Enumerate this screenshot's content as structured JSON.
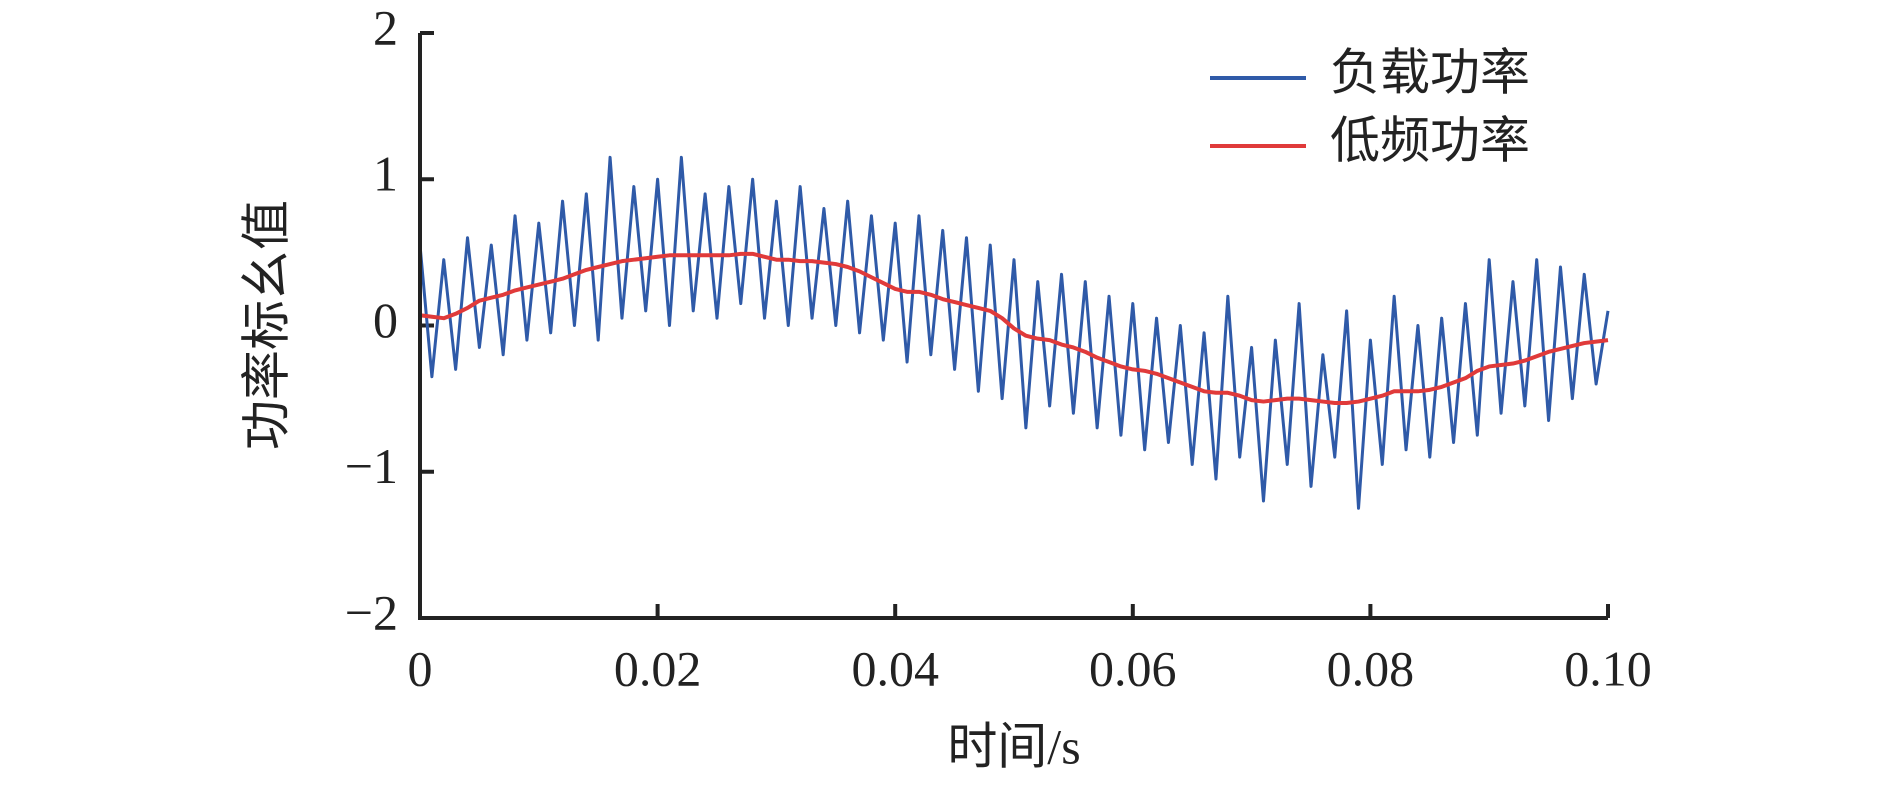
{
  "chart_data": {
    "type": "line",
    "xlabel": "时间/s",
    "ylabel": "功率标幺值",
    "x": [
      0,
      0.001,
      0.002,
      0.003,
      0.004,
      0.005,
      0.006,
      0.007,
      0.008,
      0.009,
      0.01,
      0.011,
      0.012,
      0.013,
      0.014,
      0.015,
      0.016,
      0.017,
      0.018,
      0.019,
      0.02,
      0.021,
      0.022,
      0.023,
      0.024,
      0.025,
      0.026,
      0.027,
      0.028,
      0.029,
      0.03,
      0.031,
      0.032,
      0.033,
      0.034,
      0.035,
      0.036,
      0.037,
      0.038,
      0.039,
      0.04,
      0.041,
      0.042,
      0.043,
      0.044,
      0.045,
      0.046,
      0.047,
      0.048,
      0.049,
      0.05,
      0.051,
      0.052,
      0.053,
      0.054,
      0.055,
      0.056,
      0.057,
      0.058,
      0.059,
      0.06,
      0.061,
      0.062,
      0.063,
      0.064,
      0.065,
      0.066,
      0.067,
      0.068,
      0.069,
      0.07,
      0.071,
      0.072,
      0.073,
      0.074,
      0.075,
      0.076,
      0.077,
      0.078,
      0.079,
      0.08,
      0.081,
      0.082,
      0.083,
      0.084,
      0.085,
      0.086,
      0.087,
      0.088,
      0.089,
      0.09,
      0.091,
      0.092,
      0.093,
      0.094,
      0.095,
      0.096,
      0.097,
      0.098,
      0.099,
      0.1
    ],
    "series": [
      {
        "name": "负载功率",
        "color": "#2f5aa8",
        "values": [
          0.55,
          -0.35,
          0.45,
          -0.3,
          0.6,
          -0.15,
          0.55,
          -0.2,
          0.75,
          -0.1,
          0.7,
          -0.05,
          0.85,
          0.0,
          0.9,
          -0.1,
          1.15,
          0.05,
          0.95,
          0.1,
          1.0,
          0.0,
          1.15,
          0.1,
          0.9,
          0.05,
          0.95,
          0.15,
          1.0,
          0.05,
          0.85,
          0.0,
          0.95,
          0.05,
          0.8,
          0.0,
          0.85,
          -0.05,
          0.75,
          -0.1,
          0.7,
          -0.25,
          0.75,
          -0.2,
          0.65,
          -0.3,
          0.6,
          -0.45,
          0.55,
          -0.5,
          0.45,
          -0.7,
          0.3,
          -0.55,
          0.35,
          -0.6,
          0.3,
          -0.7,
          0.2,
          -0.75,
          0.15,
          -0.85,
          0.05,
          -0.8,
          0.0,
          -0.95,
          -0.05,
          -1.05,
          0.2,
          -0.9,
          -0.15,
          -1.2,
          -0.1,
          -0.95,
          0.15,
          -1.1,
          -0.2,
          -0.9,
          0.1,
          -1.25,
          -0.1,
          -0.95,
          0.2,
          -0.85,
          0.0,
          -0.9,
          0.05,
          -0.8,
          0.15,
          -0.75,
          0.45,
          -0.6,
          0.3,
          -0.55,
          0.45,
          -0.65,
          0.4,
          -0.5,
          0.35,
          -0.4,
          0.1
        ]
      },
      {
        "name": "低频功率",
        "color": "#e03a3a",
        "values": [
          0.07,
          0.06,
          0.05,
          0.08,
          0.12,
          0.17,
          0.19,
          0.21,
          0.24,
          0.26,
          0.28,
          0.3,
          0.32,
          0.35,
          0.38,
          0.4,
          0.42,
          0.44,
          0.45,
          0.46,
          0.47,
          0.48,
          0.48,
          0.48,
          0.48,
          0.48,
          0.48,
          0.49,
          0.49,
          0.47,
          0.45,
          0.45,
          0.44,
          0.44,
          0.43,
          0.42,
          0.4,
          0.37,
          0.33,
          0.29,
          0.25,
          0.23,
          0.23,
          0.21,
          0.18,
          0.16,
          0.14,
          0.12,
          0.1,
          0.05,
          -0.02,
          -0.07,
          -0.09,
          -0.1,
          -0.13,
          -0.15,
          -0.18,
          -0.22,
          -0.25,
          -0.28,
          -0.3,
          -0.31,
          -0.33,
          -0.36,
          -0.39,
          -0.42,
          -0.45,
          -0.46,
          -0.46,
          -0.48,
          -0.51,
          -0.52,
          -0.51,
          -0.5,
          -0.5,
          -0.51,
          -0.52,
          -0.53,
          -0.53,
          -0.52,
          -0.5,
          -0.48,
          -0.45,
          -0.45,
          -0.45,
          -0.44,
          -0.42,
          -0.39,
          -0.36,
          -0.31,
          -0.28,
          -0.27,
          -0.26,
          -0.24,
          -0.21,
          -0.18,
          -0.16,
          -0.14,
          -0.12,
          -0.11,
          -0.1
        ]
      }
    ],
    "xlim": [
      0,
      0.1
    ],
    "xticks": [
      0,
      0.02,
      0.04,
      0.06,
      0.08,
      {
        "value": 0.1,
        "label": "0.10"
      }
    ],
    "ylim": [
      -2,
      2
    ],
    "yticks": [
      {
        "value": -2,
        "label": "−2"
      },
      {
        "value": -1,
        "label": "−1"
      },
      0,
      1,
      2
    ],
    "legend": "upper right"
  }
}
